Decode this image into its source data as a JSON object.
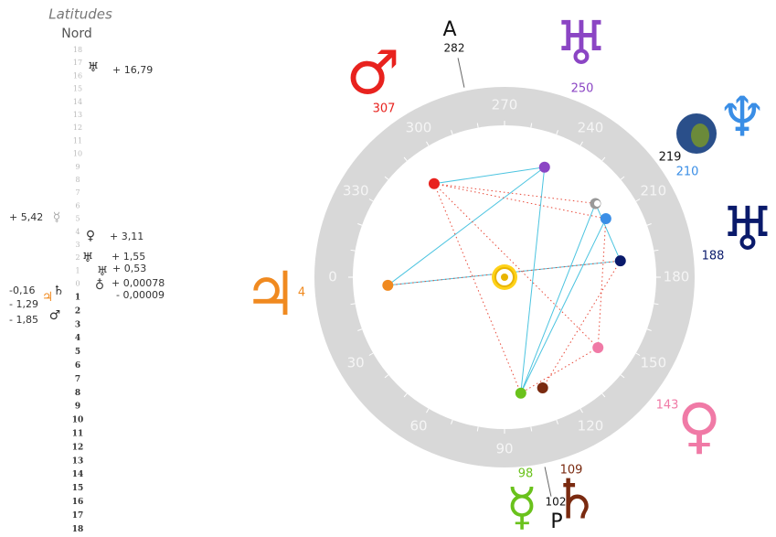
{
  "latitudes": {
    "title": "Latitudes",
    "subtitle": "Nord",
    "north_scale": [
      18,
      17,
      16,
      15,
      14,
      13,
      12,
      11,
      10,
      9,
      8,
      7,
      6,
      5,
      4,
      3,
      2,
      1,
      0
    ],
    "south_scale": [
      1,
      2,
      3,
      4,
      5,
      6,
      7,
      8,
      9,
      10,
      11,
      12,
      13,
      14,
      15,
      16,
      17,
      18
    ],
    "entries": [
      {
        "symbol": "♅",
        "label": "+ 16,79"
      },
      {
        "symbol": "☿",
        "label": "+ 5,42"
      },
      {
        "symbol": "♀",
        "label": "+ 3,11"
      },
      {
        "symbol": "♅",
        "label": "+ 1,55"
      },
      {
        "symbol": "♅",
        "label": "+ 0,53"
      },
      {
        "symbol": "♁",
        "label": "+ 0,00078"
      },
      {
        "label": "- 0,00009"
      },
      {
        "symbol": "♃",
        "label": "-0,16"
      },
      {
        "symbol": "♄",
        "label": "- 1,29"
      },
      {
        "symbol": "♂",
        "label": "- 1,85"
      }
    ]
  },
  "wheel": {
    "degree_labels": [
      0,
      30,
      60,
      90,
      120,
      150,
      180,
      210,
      240,
      270,
      300,
      330
    ],
    "planets": [
      {
        "symbol": "♂",
        "longitude": 307,
        "color": "#e8221e"
      },
      {
        "symbol": "♅",
        "longitude": 250,
        "color": "#8b45c4"
      },
      {
        "longitude": 219,
        "color": "#111111"
      },
      {
        "symbol": "♆",
        "longitude": 210,
        "color": "#3a8ee6"
      },
      {
        "symbol": "♅",
        "longitude": 188,
        "color": "#0a1a6b"
      },
      {
        "symbol": "♀",
        "longitude": 143,
        "color": "#f07aa6"
      },
      {
        "symbol": "♄",
        "longitude": 109,
        "color": "#7a2a10"
      },
      {
        "symbol": "☿",
        "longitude": 98,
        "color": "#6ac21c"
      },
      {
        "symbol": "♃",
        "longitude": 4,
        "color": "#f08a20"
      }
    ],
    "points": [
      {
        "letter": "A",
        "longitude": 282
      },
      {
        "letter": "P",
        "longitude": 102
      }
    ]
  }
}
